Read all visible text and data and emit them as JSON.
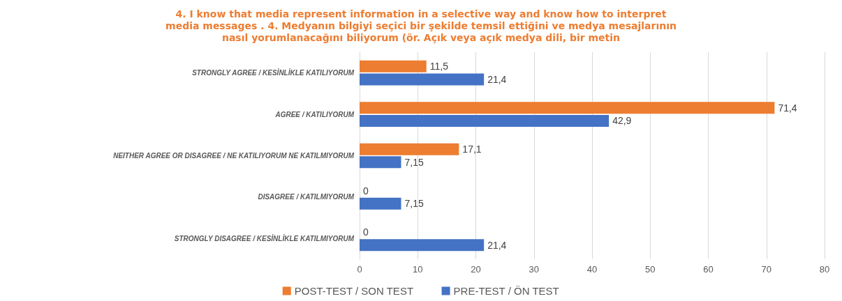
{
  "chart_data": {
    "type": "bar",
    "orientation": "horizontal",
    "title": "4. I know that media represent information in a selective way and know how to interpret\nmedia messages . 4. Medyanın bilgiyi seçici bir şekilde temsil ettiğini ve medya mesajlarının\nnasıl yorumlanacağını biliyorum (ör. Açık veya açık medya dili, bir metin",
    "categories": [
      "STRONGLY AGREE / KESİNLİKLE KATILIYORUM",
      "AGREE / KATILIYORUM",
      "NEITHER AGREE OR DISAGREE / NE KATILIYORUM NE KATILMIYORUM",
      "DISAGREE / KATILMIYORUM",
      "STRONGLY DISAGREE / KESİNLİKLE KATILMIYORUM"
    ],
    "series": [
      {
        "name": "POST-TEST / SON TEST",
        "color": "#ed7d31",
        "values": [
          11.5,
          71.4,
          17.1,
          0,
          0
        ],
        "value_labels": [
          "11,5",
          "71,4",
          "17,1",
          "0",
          "0"
        ]
      },
      {
        "name": "PRE-TEST / ÖN TEST",
        "color": "#4472c4",
        "values": [
          21.4,
          42.9,
          7.15,
          7.15,
          21.4
        ],
        "value_labels": [
          "21,4",
          "42,9",
          "7,15",
          "7,15",
          "21,4"
        ]
      }
    ],
    "xlim": [
      0,
      80
    ],
    "xticks": [
      0,
      10,
      20,
      30,
      40,
      50,
      60,
      70,
      80
    ],
    "grid": "x",
    "legend": "bottom"
  }
}
